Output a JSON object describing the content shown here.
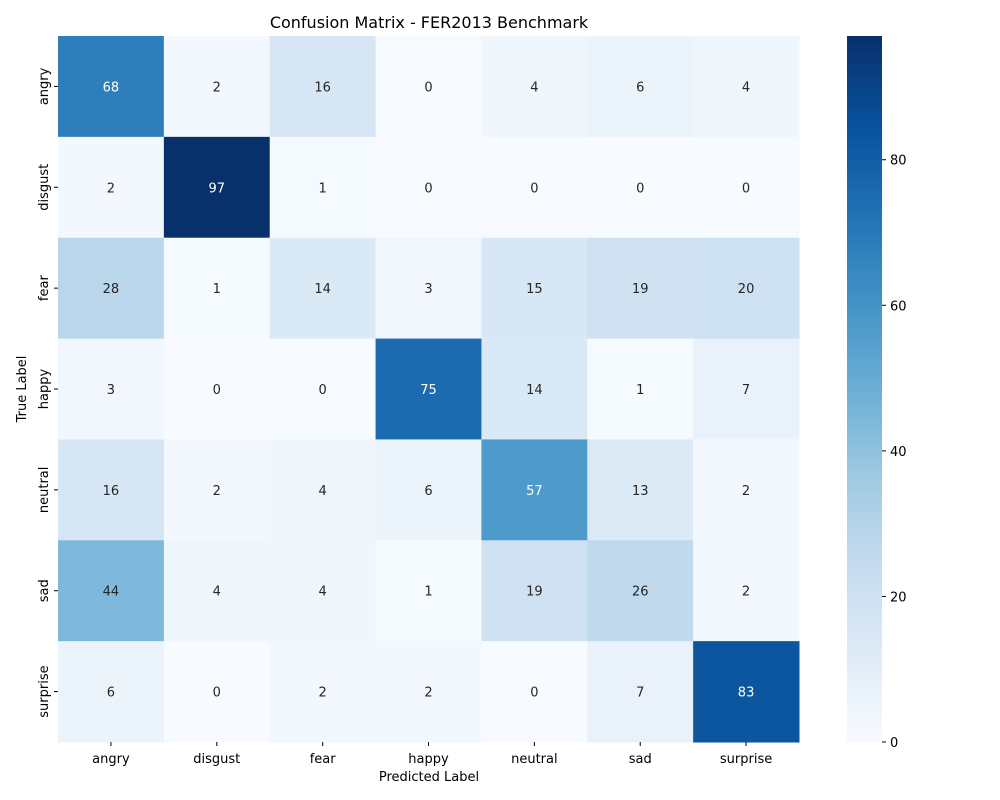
{
  "chart_data": {
    "type": "heatmap",
    "title": "Confusion Matrix - FER2013 Benchmark",
    "xlabel": "Predicted Label",
    "ylabel": "True Label",
    "x_categories": [
      "angry",
      "disgust",
      "fear",
      "happy",
      "neutral",
      "sad",
      "surprise"
    ],
    "y_categories": [
      "angry",
      "disgust",
      "fear",
      "happy",
      "neutral",
      "sad",
      "surprise"
    ],
    "values": [
      [
        68,
        2,
        16,
        0,
        4,
        6,
        4
      ],
      [
        2,
        97,
        1,
        0,
        0,
        0,
        0
      ],
      [
        28,
        1,
        14,
        3,
        15,
        19,
        20
      ],
      [
        3,
        0,
        0,
        75,
        14,
        1,
        7
      ],
      [
        16,
        2,
        4,
        6,
        57,
        13,
        2
      ],
      [
        44,
        4,
        4,
        1,
        19,
        26,
        2
      ],
      [
        6,
        0,
        2,
        2,
        0,
        7,
        83
      ]
    ],
    "colormap": "Blues",
    "colormap_range": [
      0,
      97
    ],
    "colorbar_ticks": [
      0,
      20,
      40,
      60,
      80
    ]
  }
}
